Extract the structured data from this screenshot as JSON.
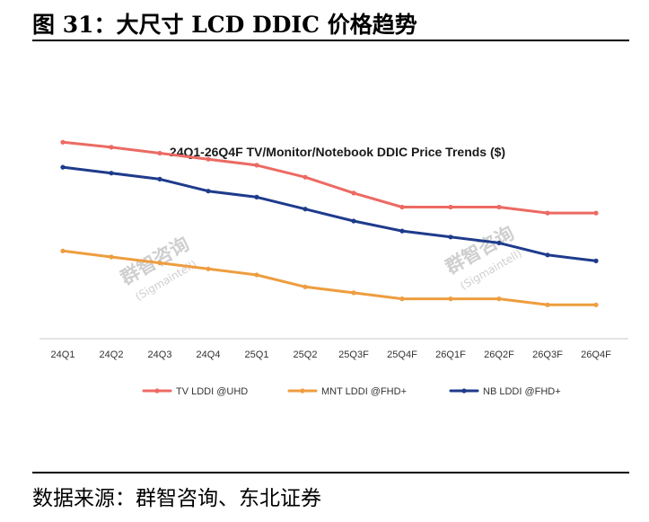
{
  "figure": {
    "title": "图 31：大尺寸 LCD DDIC 价格趋势",
    "source": "数据来源：群智咨询、东北证券"
  },
  "watermark": {
    "text": "群智咨询",
    "sub": "(Sigmaintell)"
  },
  "colors": {
    "tv": "#ec6a63",
    "mnt": "#ee9d3f",
    "nb": "#1e3b8c",
    "axis": "#c8c8c8"
  },
  "chart_data": {
    "type": "line",
    "title": "24Q1-26Q4F TV/Monitor/Notebook DDIC Price Trends ($)",
    "xlabel": "",
    "ylabel": "",
    "ylim": [
      0,
      100
    ],
    "grid": false,
    "legend": "bottom",
    "categories": [
      "24Q1",
      "24Q2",
      "24Q3",
      "24Q4",
      "25Q1",
      "25Q2",
      "25Q3F",
      "25Q4F",
      "26Q1F",
      "26Q2F",
      "26Q3F",
      "26Q4F"
    ],
    "series": [
      {
        "name": "TV  LDDI @UHD",
        "color": "#ec6a63",
        "values": [
          98.5,
          96,
          93,
          90,
          87,
          81,
          73,
          66,
          66,
          66,
          63,
          63
        ]
      },
      {
        "name": "MNT LDDI @FHD+",
        "color": "#ee9d3f",
        "values": [
          44,
          41,
          38,
          35,
          32,
          26,
          23,
          20,
          20,
          20,
          17,
          17
        ]
      },
      {
        "name": "NB LDDI @FHD+",
        "color": "#1e3b8c",
        "values": [
          86,
          83,
          80,
          74,
          71,
          65,
          59,
          54,
          51,
          48,
          42,
          39
        ]
      }
    ]
  }
}
